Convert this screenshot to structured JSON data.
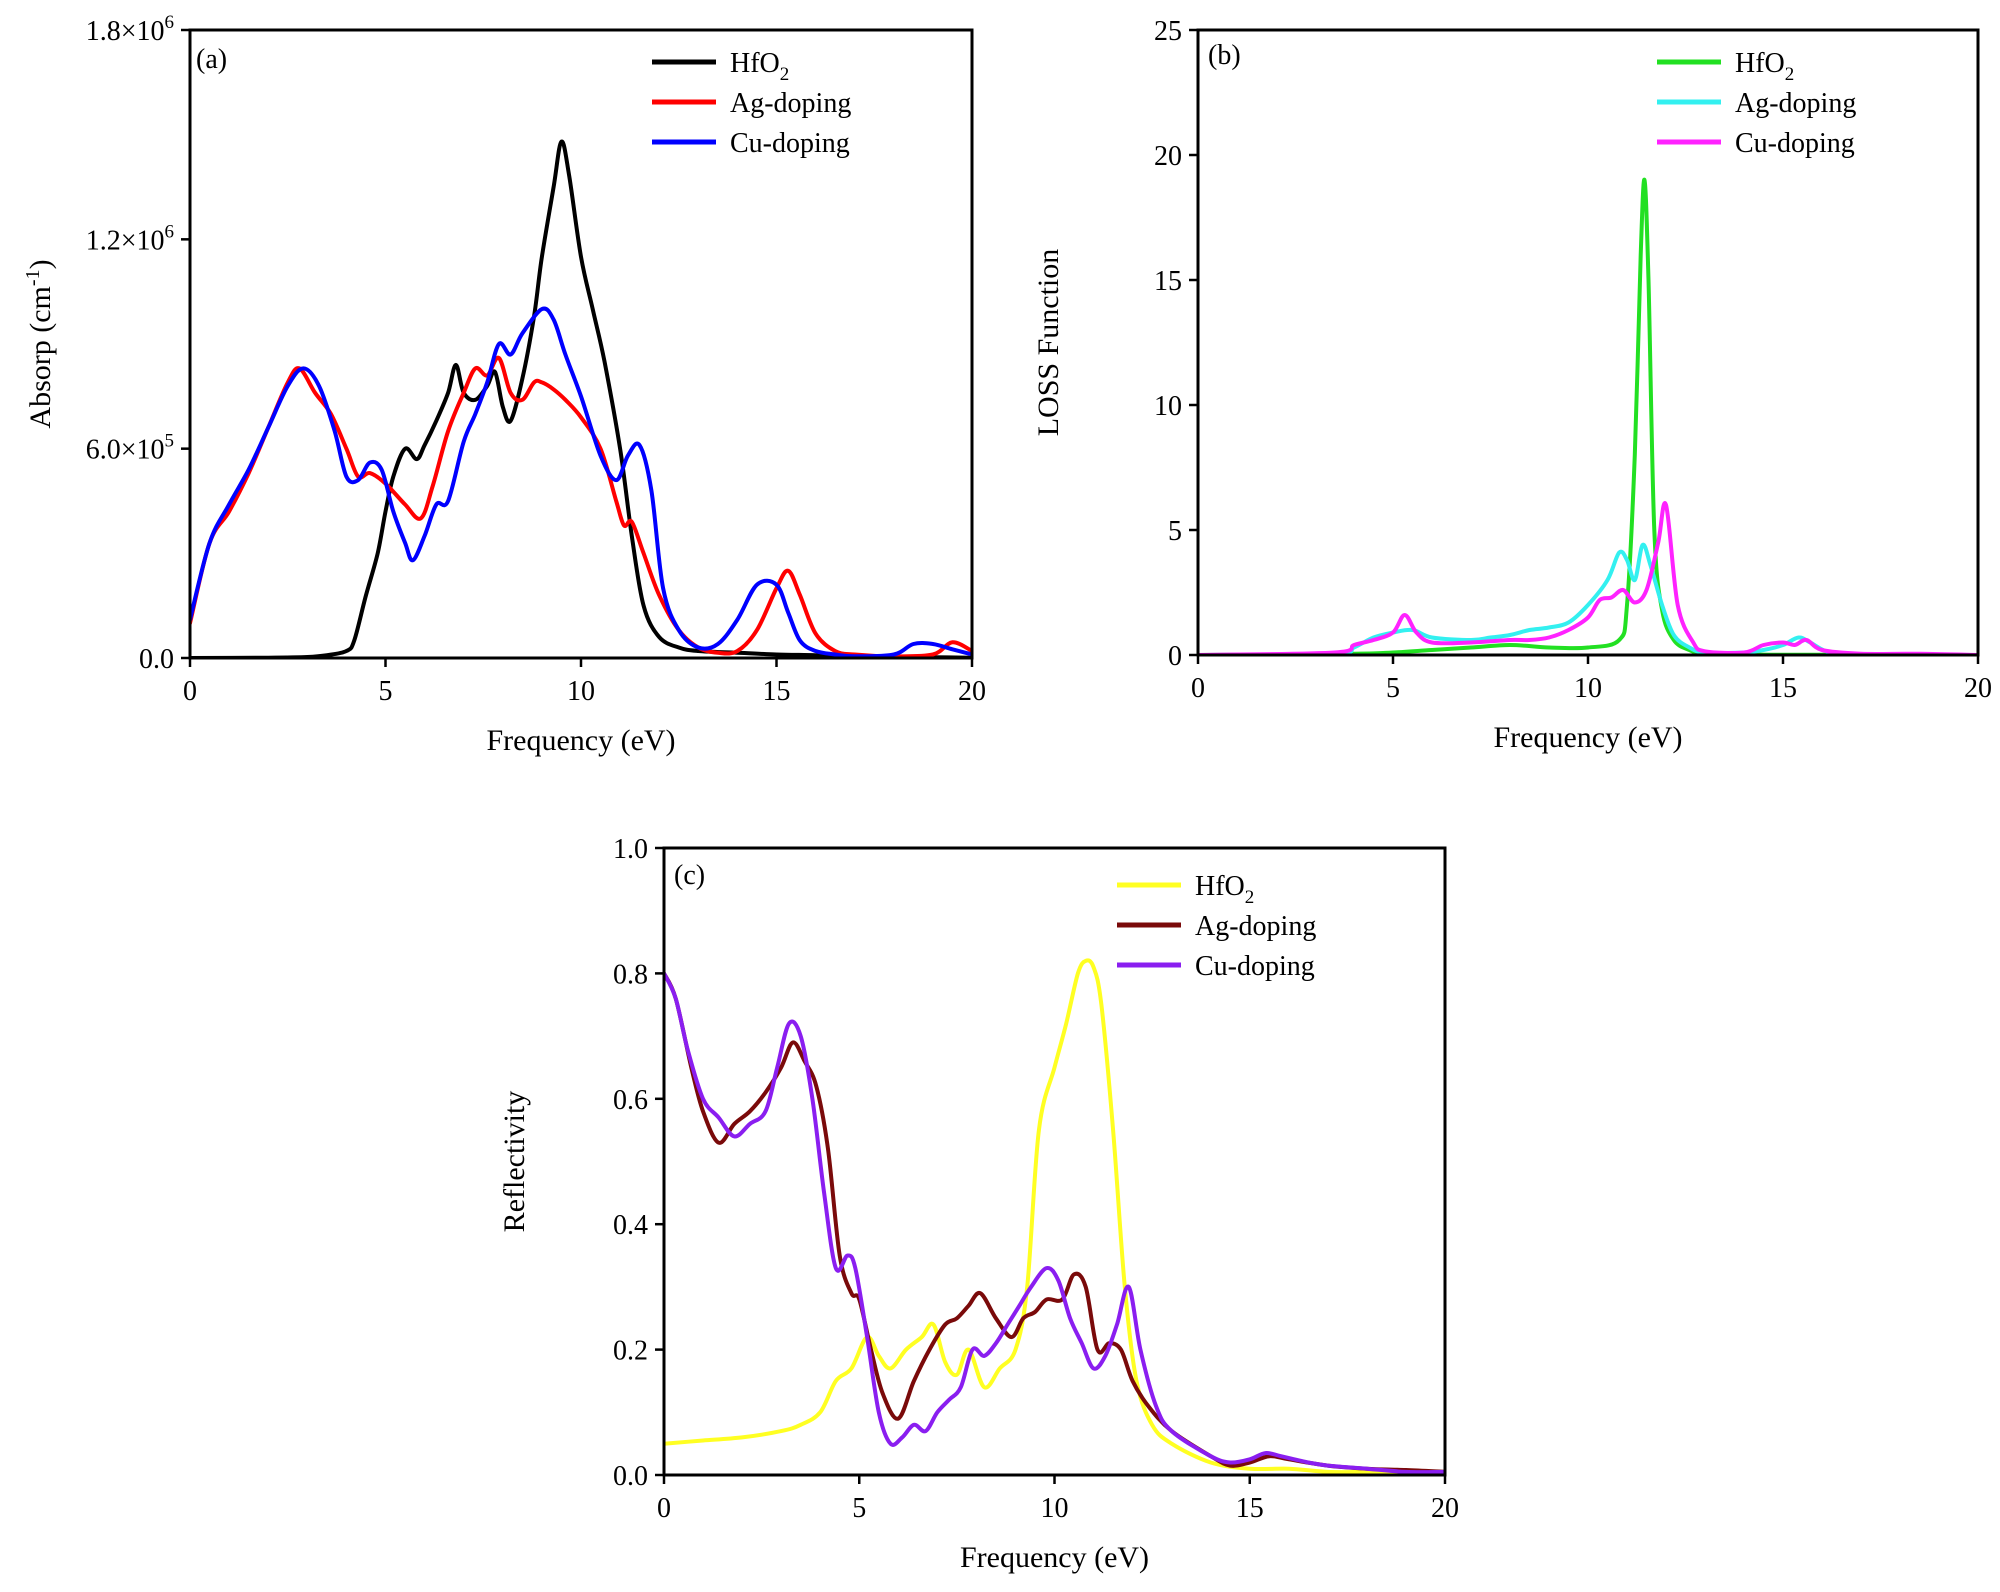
{
  "chart_data": [
    {
      "type": "line",
      "panel_label": "(a)",
      "xlabel": "Frequency (eV)",
      "ylabel": "Absorp (cm",
      "ylabel_sup": "-1",
      "ylabel_close": ")",
      "xlim": [
        0,
        20
      ],
      "ylim": [
        0,
        1800000
      ],
      "xticks": [
        0,
        5,
        10,
        15,
        20
      ],
      "xtick_labels": [
        "0",
        "5",
        "10",
        "15",
        "20"
      ],
      "yticks": [
        0,
        600000,
        1200000,
        1800000
      ],
      "ytick_labels": [
        {
          "base": "0.0",
          "exp": ""
        },
        {
          "base": "6.0×10",
          "exp": "5"
        },
        {
          "base": "1.2×10",
          "exp": "6"
        },
        {
          "base": "1.8×10",
          "exp": "6"
        }
      ],
      "legend_position": "top-right",
      "series": [
        {
          "name": "HfO",
          "sub": "2",
          "color": "#000000",
          "x": [
            0,
            2,
            3,
            3.5,
            4,
            4.2,
            4.5,
            4.8,
            5.0,
            5.2,
            5.5,
            5.8,
            6.0,
            6.3,
            6.6,
            6.8,
            7.0,
            7.3,
            7.6,
            7.8,
            8.0,
            8.2,
            8.5,
            8.8,
            9.0,
            9.3,
            9.5,
            9.7,
            10.0,
            10.3,
            10.6,
            11.0,
            11.3,
            11.6,
            12.0,
            12.5,
            13,
            14,
            15,
            16,
            17,
            18,
            19,
            20
          ],
          "values": [
            0,
            1000,
            3000,
            8000,
            20000,
            50000,
            180000,
            300000,
            420000,
            520000,
            600000,
            570000,
            610000,
            680000,
            760000,
            840000,
            760000,
            740000,
            780000,
            820000,
            720000,
            680000,
            800000,
            980000,
            1150000,
            1350000,
            1480000,
            1380000,
            1150000,
            1000000,
            850000,
            600000,
            350000,
            150000,
            60000,
            30000,
            20000,
            15000,
            10000,
            8000,
            5000,
            3000,
            2000,
            1000
          ]
        },
        {
          "name": "Ag-doping",
          "color": "#ff0000",
          "x": [
            0,
            0.5,
            1.0,
            1.5,
            2.0,
            2.5,
            2.8,
            3.2,
            3.6,
            4.0,
            4.3,
            4.6,
            5.0,
            5.5,
            5.9,
            6.2,
            6.6,
            7.0,
            7.3,
            7.6,
            7.9,
            8.2,
            8.5,
            8.8,
            9.0,
            9.3,
            9.6,
            10.0,
            10.5,
            10.9,
            11.1,
            11.3,
            11.6,
            12.0,
            12.5,
            13.0,
            13.5,
            14.0,
            14.5,
            15.0,
            15.3,
            15.6,
            16.0,
            16.5,
            17,
            18,
            19,
            19.5,
            20
          ],
          "values": [
            100000,
            330000,
            420000,
            530000,
            660000,
            790000,
            830000,
            760000,
            700000,
            600000,
            520000,
            530000,
            500000,
            440000,
            400000,
            490000,
            650000,
            760000,
            830000,
            810000,
            860000,
            760000,
            740000,
            790000,
            790000,
            770000,
            740000,
            690000,
            600000,
            450000,
            380000,
            390000,
            300000,
            180000,
            80000,
            30000,
            15000,
            20000,
            80000,
            200000,
            250000,
            180000,
            70000,
            20000,
            10000,
            5000,
            10000,
            45000,
            20000
          ]
        },
        {
          "name": "Cu-doping",
          "color": "#0000ff",
          "x": [
            0,
            0.5,
            1.0,
            1.5,
            2.0,
            2.5,
            2.9,
            3.3,
            3.7,
            4.0,
            4.3,
            4.6,
            4.9,
            5.2,
            5.5,
            5.7,
            6.0,
            6.3,
            6.6,
            7.0,
            7.3,
            7.6,
            7.9,
            8.2,
            8.5,
            9.0,
            9.3,
            9.6,
            10.0,
            10.5,
            10.9,
            11.2,
            11.5,
            11.8,
            12.1,
            12.5,
            13.0,
            13.5,
            14.0,
            14.5,
            15.0,
            15.3,
            15.6,
            16.0,
            16.5,
            17,
            18,
            18.5,
            19,
            19.5,
            20
          ],
          "values": [
            110000,
            330000,
            440000,
            540000,
            660000,
            780000,
            830000,
            780000,
            650000,
            520000,
            510000,
            560000,
            540000,
            420000,
            330000,
            280000,
            350000,
            440000,
            450000,
            620000,
            700000,
            790000,
            900000,
            870000,
            930000,
            1000000,
            970000,
            870000,
            750000,
            580000,
            510000,
            580000,
            610000,
            480000,
            200000,
            80000,
            30000,
            40000,
            110000,
            210000,
            210000,
            130000,
            50000,
            20000,
            10000,
            5000,
            10000,
            40000,
            40000,
            25000,
            10000
          ]
        }
      ]
    },
    {
      "type": "line",
      "panel_label": "(b)",
      "xlabel": "Frequency (eV)",
      "ylabel": "LOSS Function",
      "xlim": [
        0,
        20
      ],
      "ylim": [
        0,
        25
      ],
      "xticks": [
        0,
        5,
        10,
        15,
        20
      ],
      "xtick_labels": [
        "0",
        "5",
        "10",
        "15",
        "20"
      ],
      "yticks": [
        0,
        5,
        10,
        15,
        20,
        25
      ],
      "ytick_labels": [
        "0",
        "5",
        "10",
        "15",
        "20",
        "25"
      ],
      "legend_position": "top-right",
      "series": [
        {
          "name": "HfO",
          "sub": "2",
          "color": "#22e022",
          "x": [
            0,
            4,
            5,
            6,
            7,
            8,
            9,
            10,
            10.8,
            11.0,
            11.2,
            11.35,
            11.45,
            11.55,
            11.7,
            11.9,
            12.2,
            12.6,
            13,
            14,
            15,
            16,
            18,
            20
          ],
          "values": [
            0,
            0.05,
            0.1,
            0.2,
            0.3,
            0.4,
            0.3,
            0.3,
            0.6,
            2.0,
            8.0,
            16.0,
            19.0,
            15.0,
            5.0,
            1.8,
            0.6,
            0.2,
            0.05,
            0.02,
            0.01,
            0.01,
            0,
            0
          ]
        },
        {
          "name": "Ag-doping",
          "color": "#33f0f0",
          "x": [
            0,
            3.5,
            4.0,
            4.5,
            5.0,
            5.5,
            6.0,
            7.0,
            7.5,
            8.0,
            8.5,
            9.0,
            9.5,
            10.0,
            10.5,
            10.8,
            11.0,
            11.2,
            11.4,
            11.6,
            11.9,
            12.2,
            12.6,
            13.0,
            14.0,
            14.5,
            15.0,
            15.4,
            15.7,
            16.2,
            17,
            20
          ],
          "values": [
            0,
            0.05,
            0.3,
            0.7,
            0.9,
            1.0,
            0.7,
            0.6,
            0.7,
            0.8,
            1.0,
            1.1,
            1.3,
            2.0,
            3.0,
            4.1,
            3.8,
            3.0,
            4.4,
            3.6,
            2.0,
            0.8,
            0.3,
            0.1,
            0.1,
            0.2,
            0.4,
            0.7,
            0.5,
            0.1,
            0.02,
            0
          ]
        },
        {
          "name": "Cu-doping",
          "color": "#ff22ff",
          "x": [
            0,
            3.5,
            4.0,
            4.5,
            5.0,
            5.3,
            5.6,
            6.0,
            7.0,
            8.0,
            8.5,
            9.0,
            9.5,
            10.0,
            10.3,
            10.6,
            10.9,
            11.2,
            11.5,
            11.8,
            12.0,
            12.3,
            12.7,
            13.0,
            14.0,
            14.5,
            15.0,
            15.3,
            15.6,
            16.0,
            17,
            18.5,
            20
          ],
          "values": [
            0,
            0.1,
            0.4,
            0.6,
            0.9,
            1.6,
            0.9,
            0.5,
            0.5,
            0.6,
            0.6,
            0.7,
            1.0,
            1.5,
            2.2,
            2.3,
            2.6,
            2.1,
            2.6,
            4.5,
            6.0,
            2.0,
            0.5,
            0.15,
            0.1,
            0.4,
            0.5,
            0.4,
            0.6,
            0.2,
            0.05,
            0.05,
            0
          ]
        }
      ]
    },
    {
      "type": "line",
      "panel_label": "(c)",
      "xlabel": "Frequency (eV)",
      "ylabel": "Reflectivity",
      "xlim": [
        0,
        20
      ],
      "ylim": [
        0,
        1.0
      ],
      "xticks": [
        0,
        5,
        10,
        15,
        20
      ],
      "xtick_labels": [
        "0",
        "5",
        "10",
        "15",
        "20"
      ],
      "yticks": [
        0,
        0.2,
        0.4,
        0.6,
        0.8,
        1.0
      ],
      "ytick_labels": [
        "0.0",
        "0.2",
        "0.4",
        "0.6",
        "0.8",
        "1.0"
      ],
      "legend_position": "top-right",
      "series": [
        {
          "name": "HfO",
          "sub": "2",
          "color": "#ffff22",
          "x": [
            0,
            1,
            2,
            3,
            3.5,
            4.0,
            4.4,
            4.8,
            5.2,
            5.5,
            5.8,
            6.2,
            6.6,
            6.9,
            7.2,
            7.5,
            7.8,
            8.2,
            8.6,
            9.0,
            9.3,
            9.6,
            10.0,
            10.3,
            10.6,
            10.8,
            11.0,
            11.2,
            11.5,
            11.8,
            12.1,
            12.5,
            13,
            14,
            15,
            16,
            17,
            18,
            19,
            20
          ],
          "values": [
            0.05,
            0.055,
            0.06,
            0.07,
            0.08,
            0.1,
            0.15,
            0.17,
            0.22,
            0.19,
            0.17,
            0.2,
            0.22,
            0.24,
            0.18,
            0.16,
            0.2,
            0.14,
            0.17,
            0.2,
            0.3,
            0.55,
            0.65,
            0.72,
            0.8,
            0.82,
            0.81,
            0.75,
            0.55,
            0.3,
            0.15,
            0.08,
            0.05,
            0.02,
            0.01,
            0.01,
            0.005,
            0.005,
            0.005,
            0.005
          ]
        },
        {
          "name": "Ag-doping",
          "color": "#7a0a0a",
          "x": [
            0,
            0.3,
            0.7,
            1.0,
            1.4,
            1.8,
            2.2,
            2.6,
            3.0,
            3.3,
            3.6,
            3.9,
            4.2,
            4.5,
            4.8,
            5.0,
            5.3,
            5.6,
            6.0,
            6.4,
            6.8,
            7.2,
            7.5,
            7.8,
            8.1,
            8.5,
            8.9,
            9.2,
            9.5,
            9.8,
            10.2,
            10.5,
            10.8,
            11.1,
            11.4,
            11.7,
            12.0,
            12.4,
            13,
            14,
            14.5,
            15,
            15.5,
            16,
            17,
            18,
            19,
            20
          ],
          "values": [
            0.8,
            0.76,
            0.65,
            0.58,
            0.53,
            0.56,
            0.58,
            0.61,
            0.65,
            0.69,
            0.66,
            0.62,
            0.52,
            0.35,
            0.29,
            0.28,
            0.2,
            0.13,
            0.09,
            0.15,
            0.2,
            0.24,
            0.25,
            0.27,
            0.29,
            0.25,
            0.22,
            0.25,
            0.26,
            0.28,
            0.28,
            0.32,
            0.3,
            0.2,
            0.21,
            0.2,
            0.15,
            0.11,
            0.07,
            0.03,
            0.015,
            0.02,
            0.03,
            0.025,
            0.015,
            0.01,
            0.008,
            0.005
          ]
        },
        {
          "name": "Cu-doping",
          "color": "#8a1ef0",
          "x": [
            0,
            0.3,
            0.6,
            1.0,
            1.4,
            1.8,
            2.2,
            2.6,
            2.9,
            3.2,
            3.5,
            3.8,
            4.1,
            4.4,
            4.7,
            4.9,
            5.2,
            5.5,
            5.8,
            6.1,
            6.4,
            6.7,
            7.0,
            7.3,
            7.6,
            7.9,
            8.2,
            8.5,
            8.8,
            9.1,
            9.4,
            9.8,
            10.1,
            10.4,
            10.7,
            11.0,
            11.3,
            11.6,
            11.9,
            12.2,
            12.6,
            13,
            14,
            14.5,
            15,
            15.4,
            15.8,
            16.5,
            17,
            18,
            19,
            20
          ],
          "values": [
            0.8,
            0.76,
            0.68,
            0.6,
            0.57,
            0.54,
            0.56,
            0.58,
            0.65,
            0.72,
            0.7,
            0.6,
            0.45,
            0.33,
            0.35,
            0.33,
            0.22,
            0.1,
            0.05,
            0.06,
            0.08,
            0.07,
            0.1,
            0.12,
            0.14,
            0.2,
            0.19,
            0.21,
            0.24,
            0.27,
            0.3,
            0.33,
            0.31,
            0.25,
            0.21,
            0.17,
            0.19,
            0.24,
            0.3,
            0.2,
            0.11,
            0.07,
            0.03,
            0.02,
            0.025,
            0.035,
            0.03,
            0.02,
            0.015,
            0.01,
            0.005,
            0.005
          ]
        }
      ]
    }
  ]
}
